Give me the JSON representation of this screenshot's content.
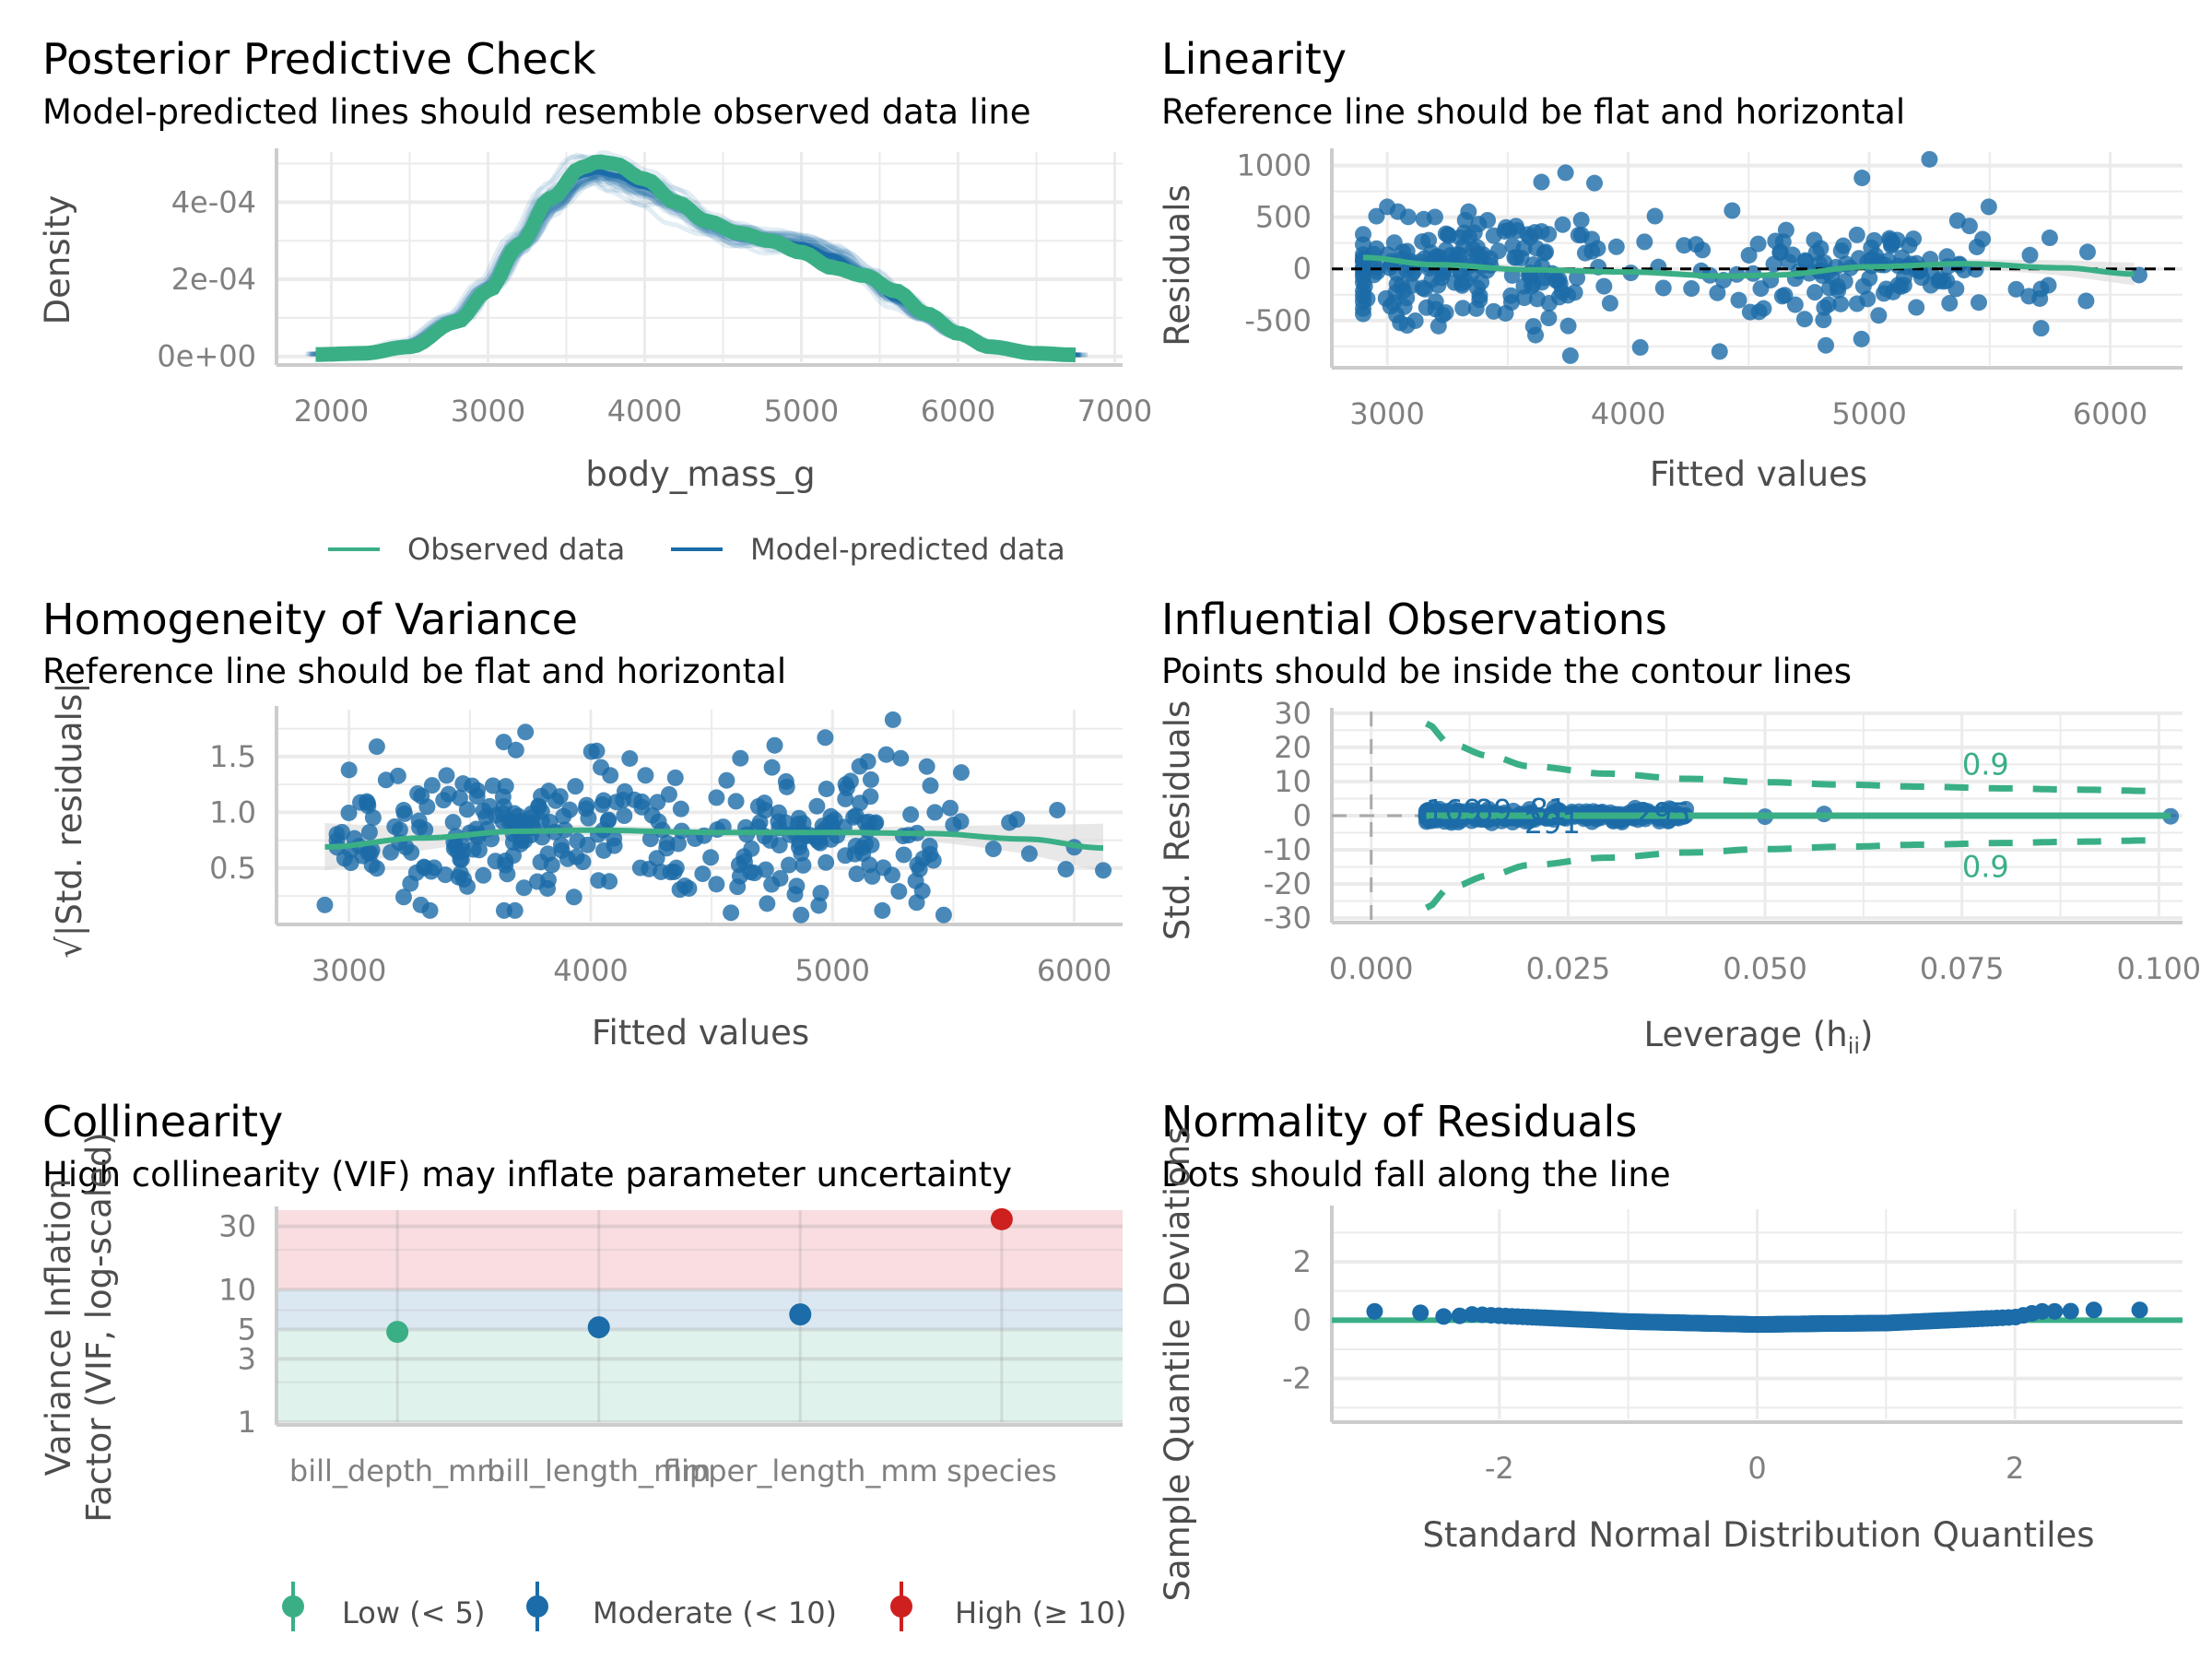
{
  "colors": {
    "green": "#3aaf85",
    "blue": "#1b6ca8",
    "red": "#cd201f",
    "grid": "#ebebeb",
    "axis": "#cccccc",
    "band_low": "#e0f2ec",
    "band_moderate": "#dbe7f1",
    "band_high": "#f9dde0",
    "ci": "#d9d9d9"
  },
  "chart_data": [
    {
      "id": "ppc",
      "type": "line",
      "title": "Posterior Predictive Check",
      "subtitle": "Model-predicted lines should resemble observed data line",
      "xlabel": "body_mass_g",
      "ylabel": "Density",
      "xlim": [
        1650,
        7050
      ],
      "ylim": [
        -1.5e-05,
        0.00053
      ],
      "xticks": [
        2000,
        3000,
        4000,
        5000,
        6000,
        7000
      ],
      "xtick_labels": [
        "2000",
        "3000",
        "4000",
        "5000",
        "6000",
        "7000"
      ],
      "yticks": [
        0,
        0.0002,
        0.0004
      ],
      "ytick_labels": [
        "0e+00",
        "2e-04",
        "4e-04"
      ],
      "legend": {
        "position": "bottom",
        "items": [
          {
            "label": "Observed data",
            "color": "green"
          },
          {
            "label": "Model-predicted data",
            "color": "blue"
          }
        ]
      },
      "series": [
        {
          "name": "Observed data",
          "x": [
            1900,
            2200,
            2500,
            2800,
            3000,
            3200,
            3400,
            3600,
            3700,
            3800,
            4000,
            4200,
            4400,
            4600,
            4800,
            5000,
            5200,
            5400,
            5600,
            5800,
            6000,
            6200,
            6500,
            6750
          ],
          "y": [
            5e-06,
            8e-06,
            2.5e-05,
            9e-05,
            0.00017,
            0.00029,
            0.00041,
            0.00049,
            0.000505,
            0.0005,
            0.00046,
            0.0004,
            0.00035,
            0.00032,
            0.0003,
            0.00027,
            0.00023,
            0.00021,
            0.00017,
            0.00011,
            6e-05,
            2.5e-05,
            8e-06,
            4e-06
          ]
        },
        {
          "name": "Model-predicted data",
          "x": [
            1900,
            2200,
            2500,
            2800,
            3000,
            3200,
            3400,
            3600,
            3700,
            3800,
            4000,
            4200,
            4400,
            4600,
            4800,
            5000,
            5200,
            5400,
            5600,
            5800,
            6000,
            6200,
            6500,
            6750
          ],
          "y": [
            6e-06,
            1.2e-05,
            3.5e-05,
            0.0001,
            0.00018,
            0.00029,
            0.0004,
            0.00047,
            0.00048,
            0.00047,
            0.00044,
            0.00039,
            0.00034,
            0.00031,
            0.0003,
            0.00029,
            0.00026,
            0.00021,
            0.00015,
            0.0001,
            5.5e-05,
            2.5e-05,
            8e-06,
            4e-06
          ]
        }
      ]
    },
    {
      "id": "linearity",
      "type": "scatter",
      "title": "Linearity",
      "subtitle": "Reference line should be flat and horizontal",
      "xlabel": "Fitted values",
      "ylabel": "Residuals",
      "xlim": [
        2770,
        6300
      ],
      "ylim": [
        -930,
        1130
      ],
      "xticks": [
        3000,
        4000,
        5000,
        6000
      ],
      "xtick_labels": [
        "3000",
        "4000",
        "5000",
        "6000"
      ],
      "yticks": [
        -500,
        0,
        500,
        1000
      ],
      "ytick_labels": [
        "-500",
        "0",
        "500",
        "1000"
      ],
      "n_points": 333,
      "point_cloud": {
        "x_range": [
          2900,
          6120
        ],
        "residual_sd": 330
      },
      "highlight_points": [
        [
          2900,
          -5
        ],
        [
          3000,
          600
        ],
        [
          3640,
          840
        ],
        [
          3740,
          930
        ],
        [
          3760,
          -840
        ],
        [
          3860,
          830
        ],
        [
          4970,
          880
        ],
        [
          5250,
          1060
        ],
        [
          4820,
          -740
        ],
        [
          4050,
          -760
        ],
        [
          6120,
          -60
        ],
        [
          5900,
          -310
        ]
      ],
      "smooth": {
        "x": [
          2900,
          3200,
          3600,
          4000,
          4400,
          4600,
          5000,
          5400,
          5800,
          6100
        ],
        "y": [
          110,
          40,
          -10,
          -30,
          -70,
          -60,
          20,
          50,
          10,
          -50
        ]
      },
      "reference_line": 0
    },
    {
      "id": "homogeneity",
      "type": "scatter",
      "title": "Homogeneity of Variance",
      "subtitle": "Reference line should be flat and horizontal",
      "xlabel": "Fitted values",
      "ylabel": "√|Std. residuals|",
      "xlim": [
        2700,
        6200
      ],
      "ylim": [
        0.02,
        1.92
      ],
      "xticks": [
        3000,
        4000,
        5000,
        6000
      ],
      "xtick_labels": [
        "3000",
        "4000",
        "5000",
        "6000"
      ],
      "yticks": [
        0.5,
        1.0,
        1.5
      ],
      "ytick_labels": [
        "0.5",
        "1.0",
        "1.5"
      ],
      "n_points": 333,
      "point_cloud": {
        "x_range": [
          2900,
          6120
        ]
      },
      "highlight_points": [
        [
          2900,
          0.17
        ],
        [
          3000,
          1.38
        ],
        [
          3730,
          1.72
        ],
        [
          3640,
          1.63
        ],
        [
          4970,
          1.67
        ],
        [
          5250,
          1.83
        ],
        [
          4580,
          0.1
        ],
        [
          4870,
          0.08
        ],
        [
          5460,
          0.08
        ],
        [
          6120,
          0.48
        ],
        [
          5930,
          1.02
        ]
      ],
      "smooth": {
        "x": [
          2900,
          3300,
          3700,
          4000,
          4500,
          5000,
          5400,
          5800,
          6120
        ],
        "y": [
          0.69,
          0.77,
          0.83,
          0.84,
          0.82,
          0.82,
          0.81,
          0.76,
          0.68
        ]
      }
    },
    {
      "id": "influential",
      "type": "scatter",
      "title": "Influential Observations",
      "subtitle": "Points should be inside the contour lines",
      "xlabel": "Leverage (h",
      "xlabel_sub": "ii",
      "xlabel_end": ")",
      "ylabel": "Std. Residuals",
      "xlim": [
        -0.005,
        0.103
      ],
      "ylim": [
        -30.5,
        30.5
      ],
      "xticks": [
        0,
        0.025,
        0.05,
        0.075,
        0.1
      ],
      "xtick_labels": [
        "0.000",
        "0.025",
        "0.050",
        "0.075",
        "0.100"
      ],
      "yticks": [
        -30,
        -20,
        -10,
        0,
        10,
        20,
        30
      ],
      "ytick_labels": [
        "-30",
        "-20",
        "-10",
        "0",
        "10",
        "20",
        "30"
      ],
      "point_cloud": {
        "x_range": [
          0.007,
          0.04
        ],
        "n": 330
      },
      "highlight_points": [
        [
          0.05,
          -0.3
        ],
        [
          0.0575,
          0.5
        ],
        [
          0.1015,
          -0.2
        ]
      ],
      "point_labels": [
        {
          "label": "169",
          "x": 0.0105,
          "y": 1.5
        },
        {
          "label": "89",
          "x": 0.0155,
          "y": 1.5
        },
        {
          "label": "81",
          "x": 0.0225,
          "y": 1.8
        },
        {
          "label": "291",
          "x": 0.023,
          "y": -2.2
        },
        {
          "label": "295",
          "x": 0.037,
          "y": 0.5
        }
      ],
      "contour_label": "0.9",
      "contour_upper": {
        "x": [
          0.007,
          0.01,
          0.015,
          0.02,
          0.03,
          0.04,
          0.05,
          0.06,
          0.07,
          0.08,
          0.09,
          0.1
        ],
        "y": [
          27,
          21,
          17.5,
          14.5,
          12.3,
          10.8,
          9.8,
          9.1,
          8.5,
          8.0,
          7.6,
          7.2
        ]
      },
      "contour_lower": {
        "x": [
          0.007,
          0.01,
          0.015,
          0.02,
          0.03,
          0.04,
          0.05,
          0.06,
          0.07,
          0.08,
          0.09,
          0.1
        ],
        "y": [
          -27,
          -21,
          -17.5,
          -14.5,
          -12.3,
          -10.8,
          -9.8,
          -9.1,
          -8.5,
          -8.0,
          -7.6,
          -7.2
        ]
      },
      "smooth": {
        "x": [
          0.007,
          0.1015
        ],
        "y": [
          0,
          0
        ]
      }
    },
    {
      "id": "collinearity",
      "type": "scatter",
      "title": "Collinearity",
      "subtitle": "High collinearity (VIF) may inflate parameter uncertainty",
      "xlabel": "",
      "ylabel_line1": "Variance Inflation",
      "ylabel_line2": "Factor (VIF, log-scaled)",
      "categories": [
        "bill_depth_mm",
        "bill_length_mm",
        "flipper_length_mm",
        "species"
      ],
      "values": [
        4.8,
        5.2,
        6.5,
        34
      ],
      "groups": [
        "low",
        "moderate",
        "moderate",
        "high"
      ],
      "ylim_log10": [
        0,
        1.6
      ],
      "yticks": [
        1,
        3,
        5,
        10,
        30
      ],
      "ytick_labels": [
        "1",
        "3",
        "5",
        "10",
        "30"
      ],
      "bands": [
        {
          "name": "low",
          "from": 1,
          "to": 5
        },
        {
          "name": "moderate",
          "from": 5,
          "to": 10
        },
        {
          "name": "high",
          "from": 10,
          "to": 40
        }
      ],
      "legend": {
        "position": "bottom",
        "items": [
          {
            "label": "Low (< 5)",
            "color": "green"
          },
          {
            "label": "Moderate (< 10)",
            "color": "blue"
          },
          {
            "label": "High (≥ 10)",
            "color": "red"
          }
        ]
      }
    },
    {
      "id": "normality",
      "type": "scatter",
      "title": "Normality of Residuals",
      "subtitle": "Dots should fall along the line",
      "xlabel": "Standard Normal Distribution Quantiles",
      "ylabel": "Sample Quantile Deviations",
      "xlim": [
        -3.3,
        3.3
      ],
      "ylim": [
        -3.4,
        3.8
      ],
      "xticks": [
        -2,
        0,
        2
      ],
      "xtick_labels": [
        "-2",
        "0",
        "2"
      ],
      "yticks": [
        -2,
        0,
        2
      ],
      "ytick_labels": [
        "-2",
        "0",
        "2"
      ],
      "n_points": 333,
      "deviation_curve": {
        "x": [
          -2.97,
          -2.6,
          -2.4,
          -2.2,
          -2.0,
          -1.5,
          -1.0,
          -0.5,
          0,
          0.5,
          1.0,
          1.5,
          2.0,
          2.2,
          2.4,
          2.6,
          2.97
        ],
        "y": [
          0.3,
          0.25,
          0.1,
          0.2,
          0.15,
          0.05,
          -0.05,
          -0.1,
          -0.15,
          -0.12,
          -0.1,
          0.0,
          0.1,
          0.3,
          0.3,
          0.35,
          0.35
        ]
      },
      "reference_line": 0
    }
  ]
}
